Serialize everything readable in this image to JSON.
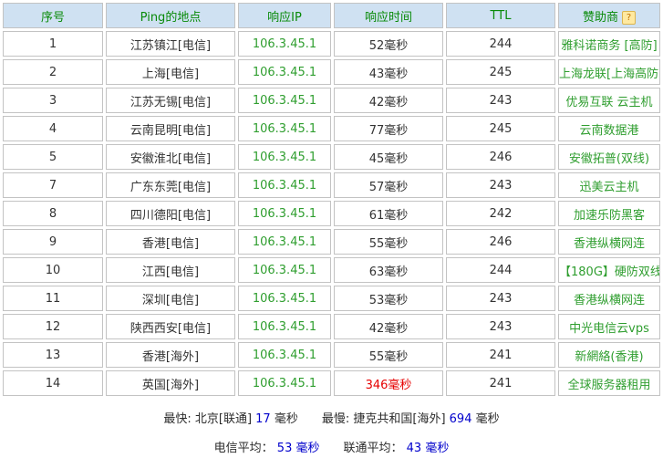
{
  "colors": {
    "header_bg": "#cfe1f2",
    "header_text": "#088a08",
    "green": "#2f9e2f",
    "red": "#e60000",
    "blue": "#0000cc",
    "text": "#333333",
    "border": "#c3c3c3"
  },
  "table": {
    "columns": [
      "序号",
      "Ping的地点",
      "响应IP",
      "响应时间",
      "TTL",
      "赞助商"
    ],
    "help_icon": "?",
    "rows": [
      {
        "seq": "1",
        "location": "江苏镇江[电信]",
        "ip": "106.3.45.1",
        "time": "52毫秒",
        "time_red": false,
        "ttl": "244",
        "sponsor": "雅科诺商务 [高防]"
      },
      {
        "seq": "2",
        "location": "上海[电信]",
        "ip": "106.3.45.1",
        "time": "43毫秒",
        "time_red": false,
        "ttl": "245",
        "sponsor": "上海龙联[上海高防]"
      },
      {
        "seq": "3",
        "location": "江苏无锡[电信]",
        "ip": "106.3.45.1",
        "time": "42毫秒",
        "time_red": false,
        "ttl": "243",
        "sponsor": "优易互联 云主机"
      },
      {
        "seq": "4",
        "location": "云南昆明[电信]",
        "ip": "106.3.45.1",
        "time": "77毫秒",
        "time_red": false,
        "ttl": "245",
        "sponsor": "云南数据港"
      },
      {
        "seq": "5",
        "location": "安徽淮北[电信]",
        "ip": "106.3.45.1",
        "time": "45毫秒",
        "time_red": false,
        "ttl": "246",
        "sponsor": "安徽拓普(双线)"
      },
      {
        "seq": "7",
        "location": "广东东莞[电信]",
        "ip": "106.3.45.1",
        "time": "57毫秒",
        "time_red": false,
        "ttl": "243",
        "sponsor": "迅美云主机"
      },
      {
        "seq": "8",
        "location": "四川德阳[电信]",
        "ip": "106.3.45.1",
        "time": "61毫秒",
        "time_red": false,
        "ttl": "242",
        "sponsor": "加速乐防黑客"
      },
      {
        "seq": "9",
        "location": "香港[电信]",
        "ip": "106.3.45.1",
        "time": "55毫秒",
        "time_red": false,
        "ttl": "246",
        "sponsor": "香港纵横网连"
      },
      {
        "seq": "10",
        "location": "江西[电信]",
        "ip": "106.3.45.1",
        "time": "63毫秒",
        "time_red": false,
        "ttl": "244",
        "sponsor": "【180G】硬防双线"
      },
      {
        "seq": "11",
        "location": "深圳[电信]",
        "ip": "106.3.45.1",
        "time": "53毫秒",
        "time_red": false,
        "ttl": "243",
        "sponsor": "香港纵横网连"
      },
      {
        "seq": "12",
        "location": "陕西西安[电信]",
        "ip": "106.3.45.1",
        "time": "42毫秒",
        "time_red": false,
        "ttl": "243",
        "sponsor": "中光电信云vps"
      },
      {
        "seq": "13",
        "location": "香港[海外]",
        "ip": "106.3.45.1",
        "time": "55毫秒",
        "time_red": false,
        "ttl": "241",
        "sponsor": "新網絡(香港)"
      },
      {
        "seq": "14",
        "location": "英国[海外]",
        "ip": "106.3.45.1",
        "time": "346毫秒",
        "time_red": true,
        "ttl": "241",
        "sponsor": "全球服务器租用"
      }
    ]
  },
  "summary": {
    "line1": [
      {
        "t": "最快: 北京[联通] ",
        "c": "dark"
      },
      {
        "t": "17",
        "c": "blue"
      },
      {
        "t": " 毫秒",
        "c": "dark"
      },
      {
        "t": "　　",
        "c": "dark"
      },
      {
        "t": "最慢: 捷克共和国[海外] ",
        "c": "dark"
      },
      {
        "t": "694",
        "c": "blue"
      },
      {
        "t": " 毫秒",
        "c": "dark"
      }
    ],
    "line2": [
      {
        "t": "电信平均： ",
        "c": "dark"
      },
      {
        "t": "53 毫秒",
        "c": "blue"
      },
      {
        "t": "　　",
        "c": "dark"
      },
      {
        "t": "联通平均： ",
        "c": "dark"
      },
      {
        "t": "43 毫秒",
        "c": "blue"
      }
    ]
  }
}
